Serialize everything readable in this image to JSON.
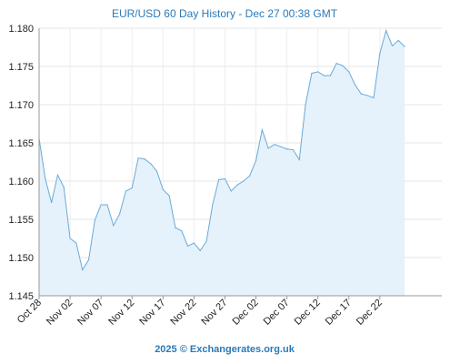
{
  "chart_data": {
    "type": "area",
    "title": "EUR/USD 60 Day History - Dec 27 00:38 GMT",
    "xlabel": "",
    "ylabel": "",
    "ylim": [
      1.145,
      1.18
    ],
    "yticks": [
      1.145,
      1.15,
      1.155,
      1.16,
      1.165,
      1.17,
      1.175,
      1.18
    ],
    "ytick_labels": [
      "1.145",
      "1.150",
      "1.155",
      "1.160",
      "1.165",
      "1.170",
      "1.175",
      "1.180"
    ],
    "x_start": "Oct 28",
    "x_end": "Jan 01",
    "xticks": [
      "Oct 28",
      "Nov 02",
      "Nov 07",
      "Nov 12",
      "Nov 17",
      "Nov 22",
      "Nov 27",
      "Dec 02",
      "Dec 07",
      "Dec 12",
      "Dec 17",
      "Dec 22"
    ],
    "grid": true,
    "line_color": "#6aaad8",
    "fill_color": "#e5f1fb",
    "points": [
      [
        "Oct 28",
        1.1656
      ],
      [
        "Oct 29",
        1.1603
      ],
      [
        "Oct 30",
        1.1572
      ],
      [
        "Oct 31",
        1.1608
      ],
      [
        "Nov 01",
        1.1592
      ],
      [
        "Nov 02",
        1.1525
      ],
      [
        "Nov 03",
        1.1519
      ],
      [
        "Nov 04",
        1.1484
      ],
      [
        "Nov 05",
        1.1497
      ],
      [
        "Nov 06",
        1.1549
      ],
      [
        "Nov 07",
        1.1569
      ],
      [
        "Nov 08",
        1.1569
      ],
      [
        "Nov 09",
        1.1542
      ],
      [
        "Nov 10",
        1.1557
      ],
      [
        "Nov 11",
        1.1587
      ],
      [
        "Nov 12",
        1.1591
      ],
      [
        "Nov 13",
        1.163
      ],
      [
        "Nov 14",
        1.1629
      ],
      [
        "Nov 15",
        1.1623
      ],
      [
        "Nov 16",
        1.1613
      ],
      [
        "Nov 17",
        1.1589
      ],
      [
        "Nov 18",
        1.1581
      ],
      [
        "Nov 19",
        1.1539
      ],
      [
        "Nov 20",
        1.1535
      ],
      [
        "Nov 21",
        1.1515
      ],
      [
        "Nov 22",
        1.1519
      ],
      [
        "Nov 23",
        1.1509
      ],
      [
        "Nov 24",
        1.1521
      ],
      [
        "Nov 25",
        1.1569
      ],
      [
        "Nov 26",
        1.1602
      ],
      [
        "Nov 27",
        1.1603
      ],
      [
        "Nov 28",
        1.1587
      ],
      [
        "Nov 29",
        1.1595
      ],
      [
        "Nov 30",
        1.16
      ],
      [
        "Dec 01",
        1.1607
      ],
      [
        "Dec 02",
        1.1627
      ],
      [
        "Dec 03",
        1.1667
      ],
      [
        "Dec 04",
        1.1643
      ],
      [
        "Dec 05",
        1.1648
      ],
      [
        "Dec 06",
        1.1645
      ],
      [
        "Dec 07",
        1.1642
      ],
      [
        "Dec 08",
        1.1641
      ],
      [
        "Dec 09",
        1.1628
      ],
      [
        "Dec 10",
        1.17
      ],
      [
        "Dec 11",
        1.1741
      ],
      [
        "Dec 12",
        1.1743
      ],
      [
        "Dec 13",
        1.1738
      ],
      [
        "Dec 14",
        1.1738
      ],
      [
        "Dec 15",
        1.1754
      ],
      [
        "Dec 16",
        1.1751
      ],
      [
        "Dec 17",
        1.1743
      ],
      [
        "Dec 18",
        1.1726
      ],
      [
        "Dec 19",
        1.1714
      ],
      [
        "Dec 20",
        1.1712
      ],
      [
        "Dec 21",
        1.1709
      ],
      [
        "Dec 22",
        1.1767
      ],
      [
        "Dec 23",
        1.1797
      ],
      [
        "Dec 24",
        1.1777
      ],
      [
        "Dec 25",
        1.1784
      ],
      [
        "Dec 26",
        1.1776
      ]
    ]
  },
  "footer": {
    "text": "2025 © Exchangerates.org.uk"
  }
}
